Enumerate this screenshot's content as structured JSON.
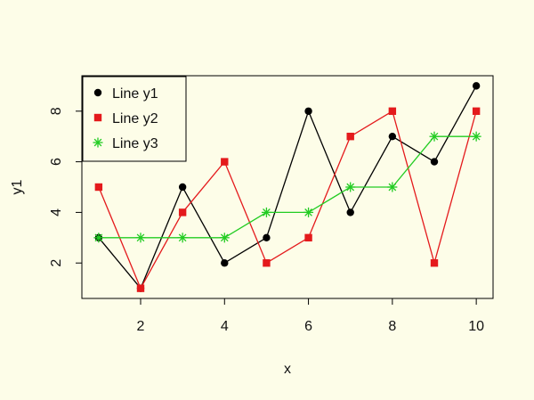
{
  "chart_data": {
    "type": "line",
    "title": "",
    "xlabel": "x",
    "ylabel": "y1",
    "x": [
      1,
      2,
      3,
      4,
      5,
      6,
      7,
      8,
      9,
      10
    ],
    "xlim": [
      0.6,
      10.4
    ],
    "ylim": [
      0.6,
      9.4
    ],
    "xticks": [
      2,
      4,
      6,
      8,
      10
    ],
    "yticks": [
      2,
      4,
      6,
      8
    ],
    "grid": false,
    "legend_position": "top-left",
    "series": [
      {
        "name": "Line y1",
        "values": [
          3,
          1,
          5,
          2,
          3,
          8,
          4,
          7,
          6,
          9
        ],
        "color": "#000000",
        "marker": "circle"
      },
      {
        "name": "Line y2",
        "values": [
          5,
          1,
          4,
          6,
          2,
          3,
          7,
          8,
          2,
          8
        ],
        "color": "#e41a1c",
        "marker": "square"
      },
      {
        "name": "Line y3",
        "values": [
          3,
          3,
          3,
          3,
          4,
          4,
          5,
          5,
          7,
          7
        ],
        "color": "#22cc22",
        "marker": "asterisk"
      }
    ]
  }
}
